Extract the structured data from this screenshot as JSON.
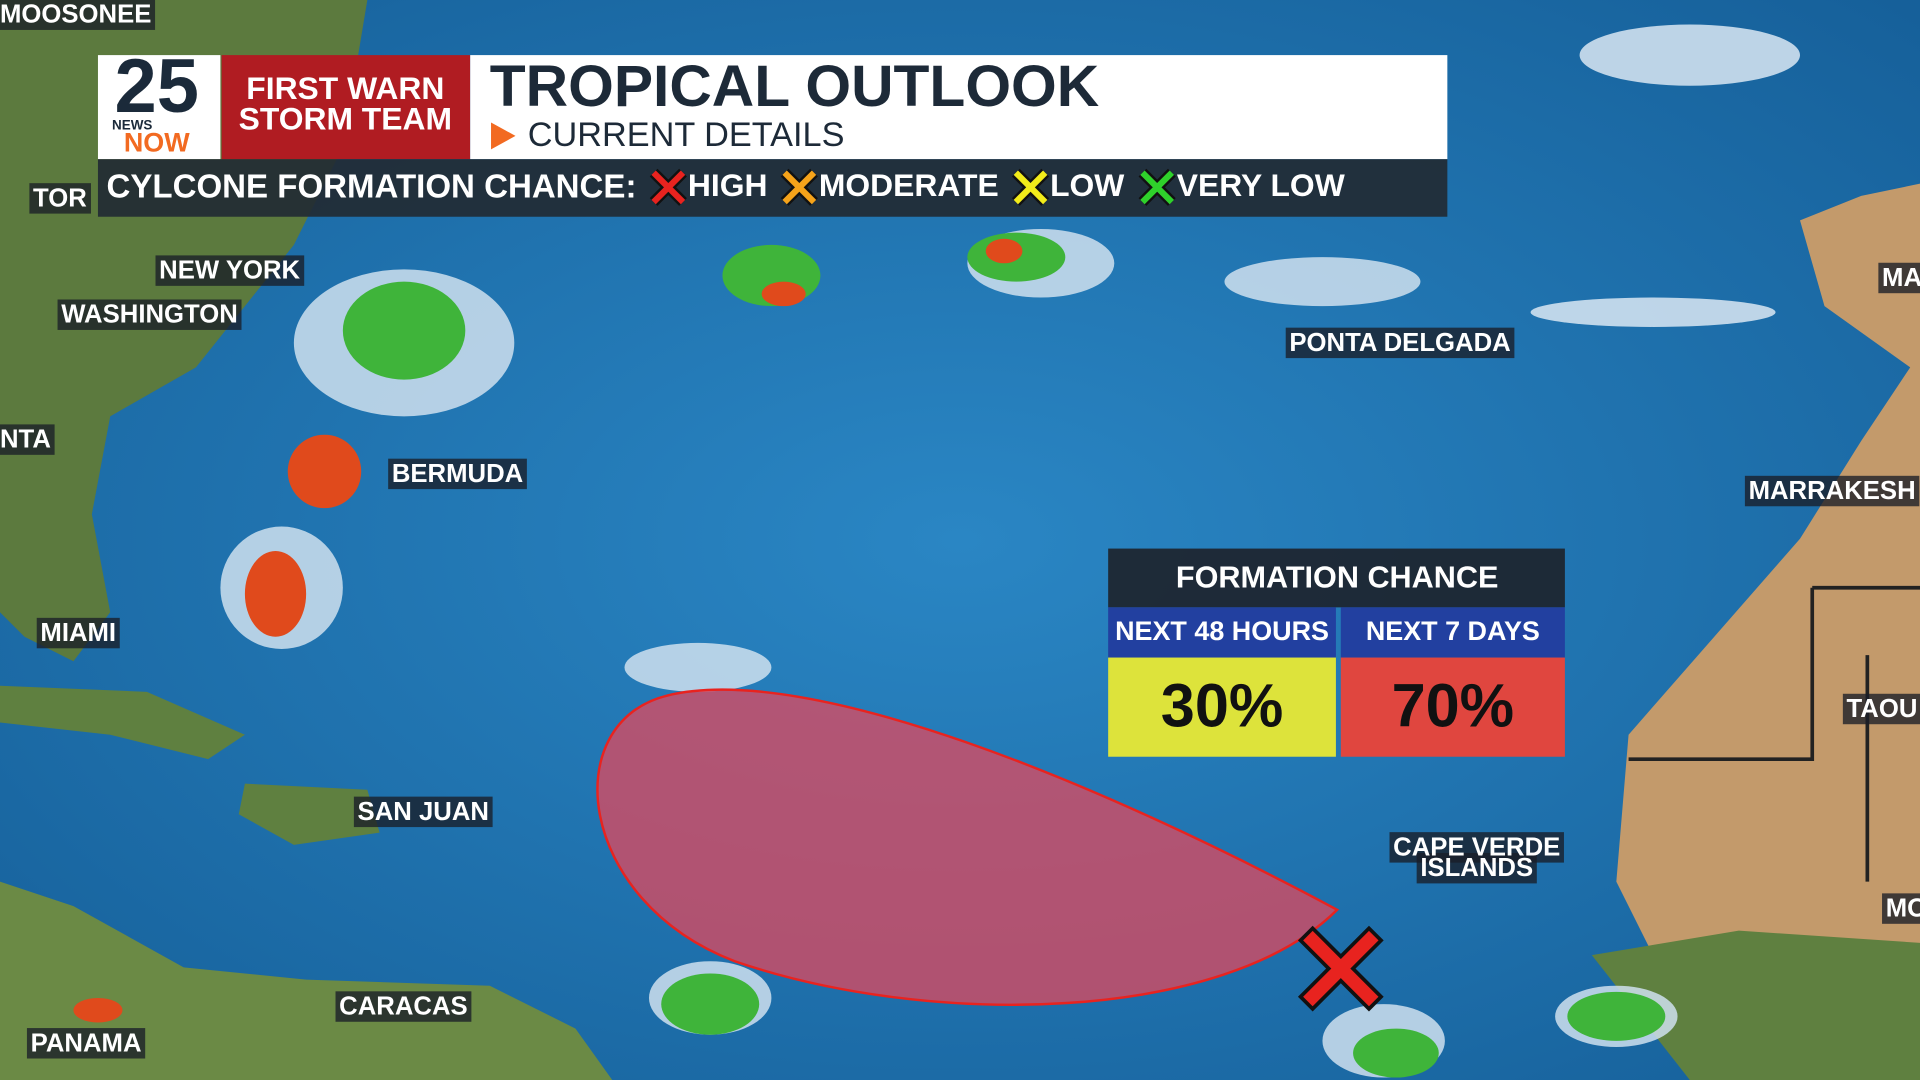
{
  "header": {
    "logo": {
      "number": "25",
      "news": "NEWS",
      "now": "NOW"
    },
    "brand": {
      "line1": "FIRST WARN",
      "line2": "STORM TEAM"
    },
    "title": "TROPICAL OUTLOOK",
    "subtitle": "CURRENT DETAILS"
  },
  "legend": {
    "label": "CYLCONE FORMATION CHANCE:",
    "items": [
      {
        "label": "HIGH",
        "color": "#e8231f"
      },
      {
        "label": "MODERATE",
        "color": "#f5a31a"
      },
      {
        "label": "LOW",
        "color": "#f2ec1a"
      },
      {
        "label": "VERY LOW",
        "color": "#2fd12b"
      }
    ]
  },
  "map_labels": [
    "MOOSONEE",
    "TOR",
    "NEW YORK",
    "WASHINGTON",
    "NTA",
    "BERMUDA",
    "MIAMI",
    "SAN JUAN",
    "CARACAS",
    "PANAMA",
    "PONTA DELGADA",
    "MA",
    "MARRAKESH",
    "TAOU",
    "MO"
  ],
  "cape_verde": [
    "CAPE VERDE",
    "ISLANDS"
  ],
  "formation": {
    "title": "FORMATION CHANCE",
    "columns": [
      {
        "period": "NEXT 48 HOURS",
        "chance": "30%",
        "color": "#dde33b"
      },
      {
        "period": "NEXT 7 DAYS",
        "chance": "70%",
        "color": "#e0463f"
      }
    ]
  }
}
